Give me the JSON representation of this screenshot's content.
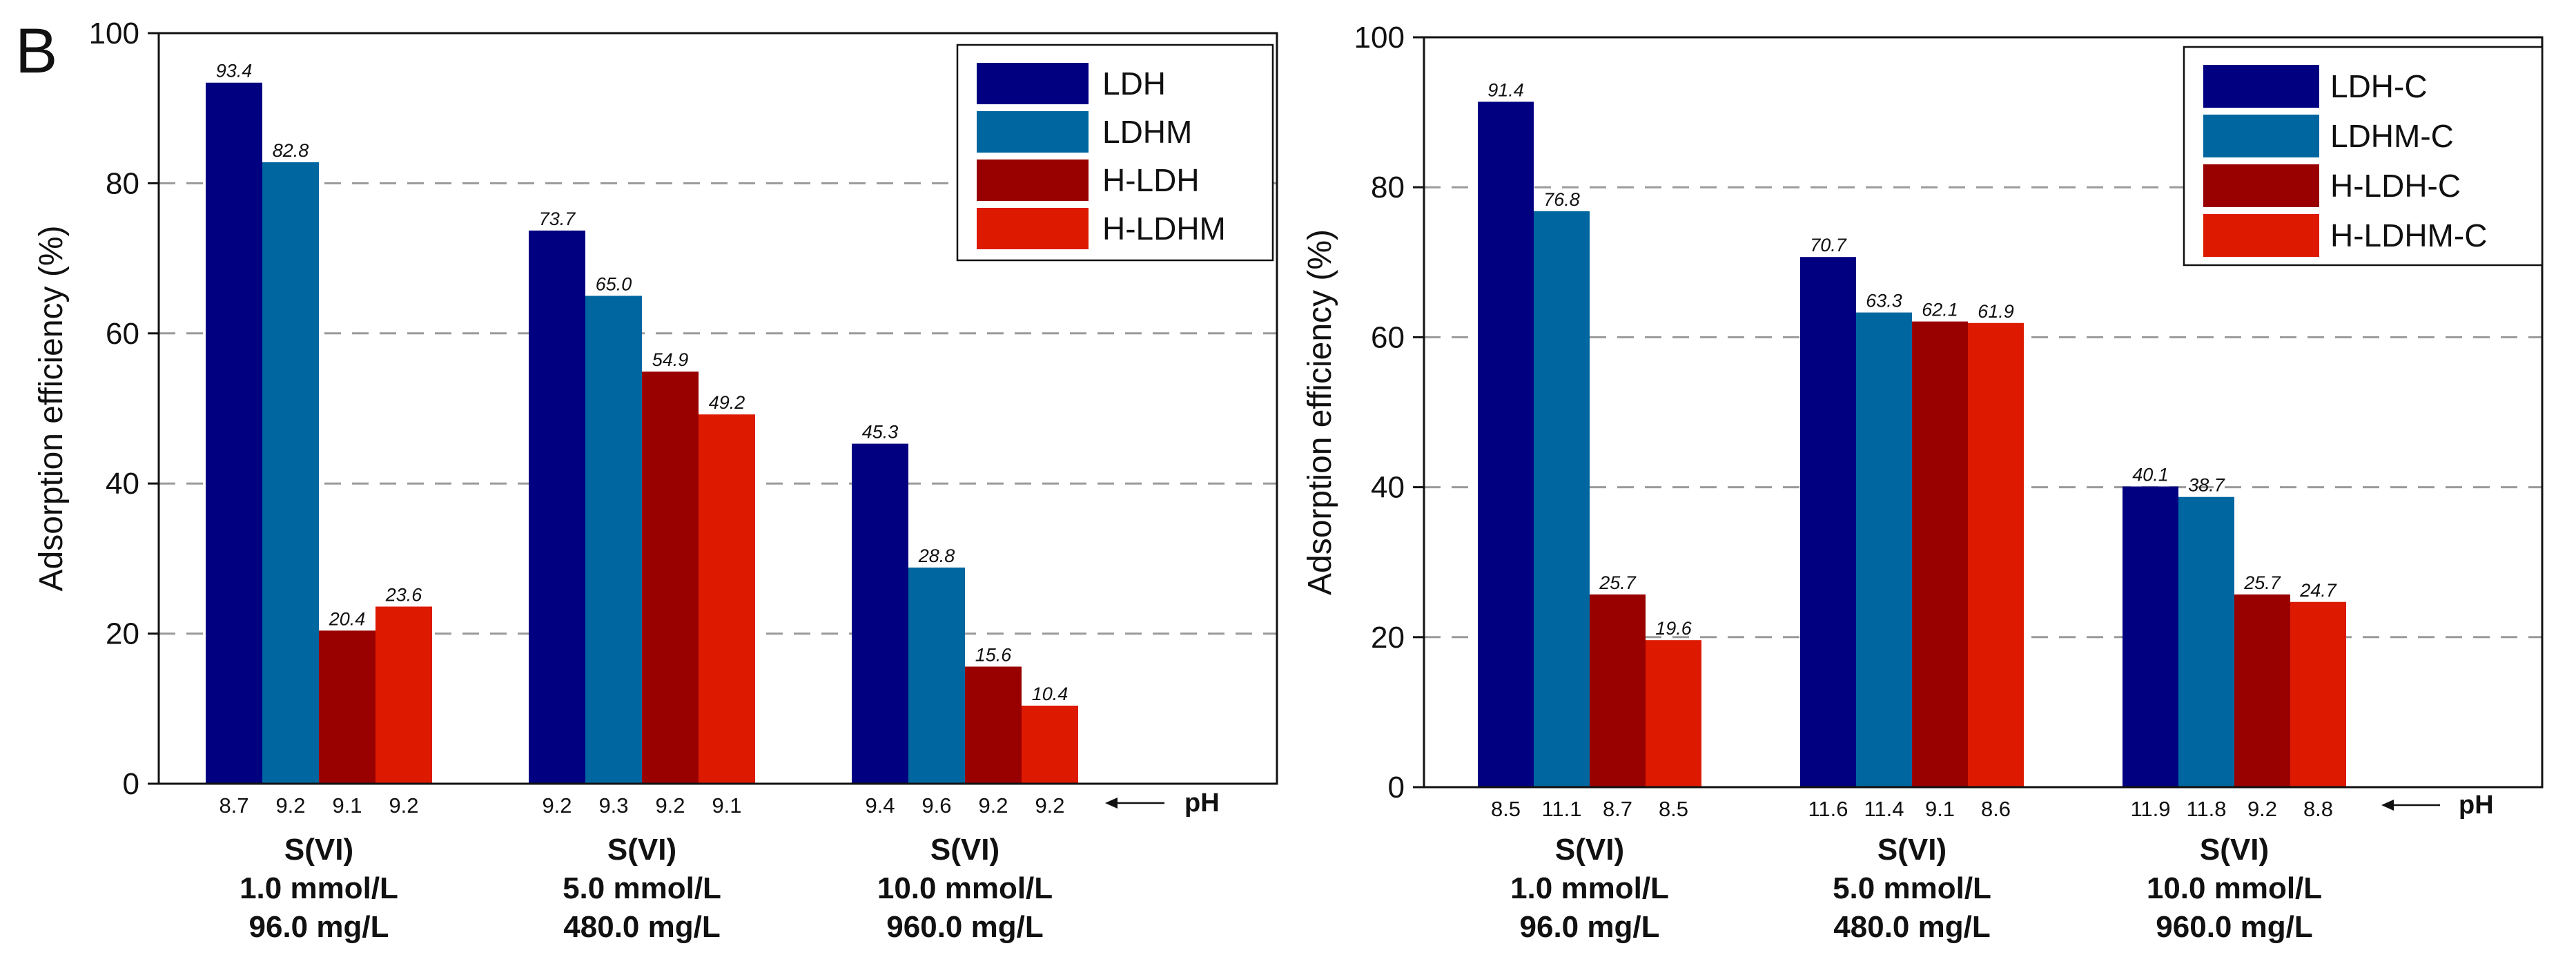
{
  "figure": {
    "panel_letter": "B",
    "ph_label": "pH"
  },
  "colors": {
    "LDH": "#000080",
    "LDHM": "#0066a0",
    "H-LDH": "#990000",
    "H-LDHM": "#dd1a00"
  },
  "chart_data": [
    {
      "type": "bar",
      "title": "",
      "xlabel": "",
      "ylabel": "Adsorption efficiency (%)",
      "ylim": [
        0,
        100
      ],
      "yticks": [
        0,
        20,
        40,
        60,
        80,
        100
      ],
      "grid": "horizontal dashed",
      "legend_position": "top-right",
      "ph_label": "pH",
      "categories": [
        [
          "S(VI)",
          "1.0 mmol/L",
          "96.0 mg/L"
        ],
        [
          "S(VI)",
          "5.0 mmol/L",
          "480.0 mg/L"
        ],
        [
          "S(VI)",
          "10.0 mmol/L",
          "960.0 mg/L"
        ]
      ],
      "series": [
        {
          "name": "LDH",
          "color": "#000080",
          "values": [
            93.4,
            73.7,
            45.3
          ],
          "labels": [
            "93.4",
            "73.7",
            "45.3"
          ],
          "ph": [
            "8.7",
            "9.2",
            "9.4"
          ]
        },
        {
          "name": "LDHM",
          "color": "#0066a0",
          "values": [
            82.8,
            65.0,
            28.8
          ],
          "labels": [
            "82.8",
            "65.0",
            "28.8"
          ],
          "ph": [
            "9.2",
            "9.3",
            "9.6"
          ]
        },
        {
          "name": "H-LDH",
          "color": "#990000",
          "values": [
            20.4,
            54.9,
            15.6
          ],
          "labels": [
            "20.4",
            "54.9",
            "15.6"
          ],
          "ph": [
            "9.1",
            "9.2",
            "9.2"
          ]
        },
        {
          "name": "H-LDHM",
          "color": "#dd1a00",
          "values": [
            23.6,
            49.2,
            10.4
          ],
          "labels": [
            "23.6",
            "49.2",
            "10.4"
          ],
          "ph": [
            "9.2",
            "9.1",
            "9.2"
          ]
        }
      ]
    },
    {
      "type": "bar",
      "title": "",
      "xlabel": "",
      "ylabel": "Adsorption efficiency (%)",
      "ylim": [
        0,
        100
      ],
      "yticks": [
        0,
        20,
        40,
        60,
        80,
        100
      ],
      "grid": "horizontal dashed",
      "legend_position": "top-right",
      "ph_label": "pH",
      "categories": [
        [
          "S(VI)",
          "1.0 mmol/L",
          "96.0 mg/L"
        ],
        [
          "S(VI)",
          "5.0 mmol/L",
          "480.0 mg/L"
        ],
        [
          "S(VI)",
          "10.0 mmol/L",
          "960.0 mg/L"
        ]
      ],
      "series": [
        {
          "name": "LDH-C",
          "color": "#000080",
          "values": [
            91.4,
            70.7,
            40.1
          ],
          "labels": [
            "91.4",
            "70.7",
            "40.1"
          ],
          "ph": [
            "8.5",
            "11.6",
            "11.9"
          ]
        },
        {
          "name": "LDHM-C",
          "color": "#0066a0",
          "values": [
            76.8,
            63.3,
            38.7
          ],
          "labels": [
            "76.8",
            "63.3",
            "38.7"
          ],
          "ph": [
            "11.1",
            "11.4",
            "11.8"
          ]
        },
        {
          "name": "H-LDH-C",
          "color": "#990000",
          "values": [
            25.7,
            62.1,
            25.7
          ],
          "labels": [
            "25.7",
            "62.1",
            "25.7"
          ],
          "ph": [
            "8.7",
            "9.1",
            "9.2"
          ]
        },
        {
          "name": "H-LDHM-C",
          "color": "#dd1a00",
          "values": [
            19.6,
            61.9,
            24.7
          ],
          "labels": [
            "19.6",
            "61.9",
            "24.7"
          ],
          "ph": [
            "8.5",
            "8.6",
            "8.8"
          ]
        }
      ]
    }
  ]
}
